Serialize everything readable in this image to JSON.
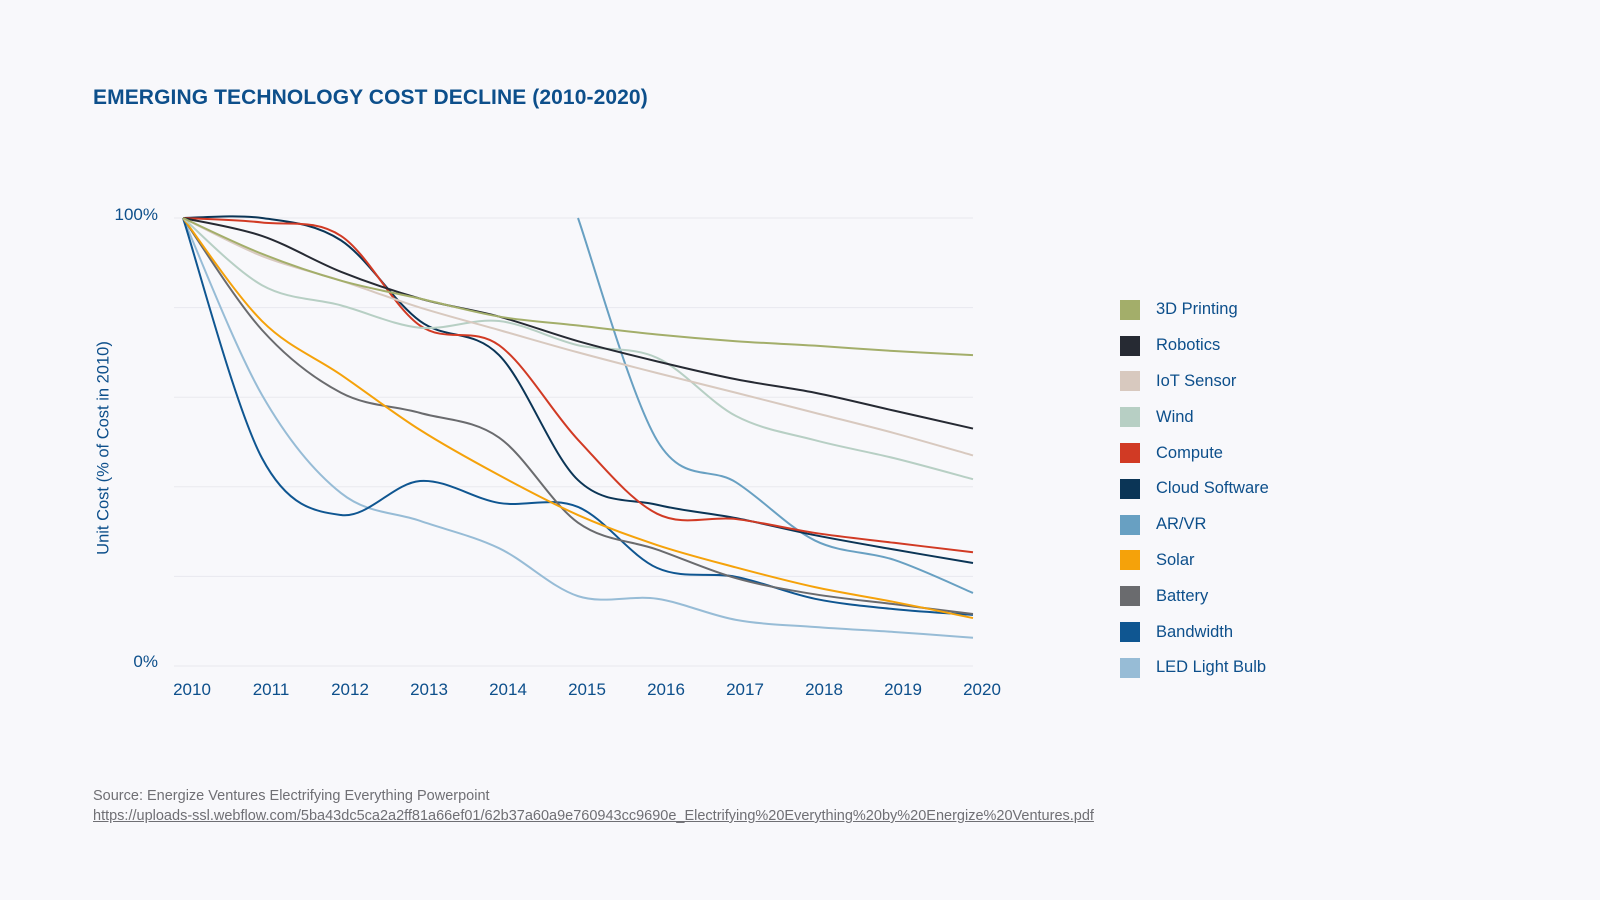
{
  "chart_data": {
    "type": "line",
    "title": "EMERGING TECHNOLOGY COST DECLINE (2010-2020)",
    "xlabel": "",
    "ylabel": "Unit Cost (% of Cost in 2010)",
    "x": [
      2010,
      2011,
      2012,
      2013,
      2014,
      2015,
      2016,
      2017,
      2018,
      2019,
      2020
    ],
    "x_tick_labels": [
      "2010",
      "2011",
      "2012",
      "2013",
      "2014",
      "2015",
      "2016",
      "2017",
      "2018",
      "2019",
      "2020"
    ],
    "y_tick_labels": [
      "100%",
      "0%"
    ],
    "ylim": [
      0,
      100
    ],
    "y_gridlines": [
      0,
      20,
      40,
      60,
      80,
      100
    ],
    "grid": true,
    "legend_position": "right",
    "series": [
      {
        "name": "3D Printing",
        "color": "#a3ae6a",
        "values": [
          100,
          92,
          86,
          82,
          78,
          76,
          74,
          72.5,
          71.5,
          70.3,
          69.4
        ]
      },
      {
        "name": "Robotics",
        "color": "#262a33",
        "values": [
          100,
          96,
          88,
          82,
          78,
          72.5,
          68,
          64,
          61,
          57,
          53
        ]
      },
      {
        "name": "IoT Sensor",
        "color": "#d8c9bf",
        "values": [
          100,
          91.5,
          86,
          80,
          75,
          70,
          65.4,
          61,
          56.5,
          52,
          47
        ]
      },
      {
        "name": "Wind",
        "color": "#b7cfc4",
        "values": [
          100,
          85,
          80.5,
          75.5,
          77,
          71.6,
          68.8,
          55.8,
          50.4,
          46.4,
          41.7
        ]
      },
      {
        "name": "Compute",
        "color": "#d13a24",
        "values": [
          100,
          99,
          96,
          76,
          71.6,
          50.5,
          34,
          32.8,
          29.7,
          27.5,
          25.4
        ]
      },
      {
        "name": "Cloud Software",
        "color": "#0b3556",
        "values": [
          100,
          100,
          95,
          77,
          69.4,
          41.5,
          36,
          33,
          29.2,
          26,
          23
        ]
      },
      {
        "name": "AR/VR",
        "color": "#68a0c2",
        "values": [
          null,
          null,
          null,
          null,
          null,
          100,
          50.4,
          41,
          28,
          23.7,
          16.3
        ]
      },
      {
        "name": "Solar",
        "color": "#f5a20a",
        "values": [
          100,
          77,
          65,
          52.7,
          42.6,
          33.7,
          27,
          22,
          17.6,
          14.3,
          10.7
        ]
      },
      {
        "name": "Battery",
        "color": "#6a6b6e",
        "values": [
          100,
          75,
          61,
          56.5,
          51,
          32,
          26,
          19.6,
          16,
          13.8,
          11.6
        ]
      },
      {
        "name": "Bandwidth",
        "color": "#0f5691",
        "values": [
          100,
          46.4,
          33.7,
          41.3,
          36.4,
          35.5,
          21.9,
          19.9,
          15,
          12.7,
          11.4
        ]
      },
      {
        "name": "LED Light Bulb",
        "color": "#97bcd6",
        "values": [
          100,
          60.5,
          38.6,
          32.4,
          26.3,
          15.6,
          15,
          10.3,
          8.7,
          7.6,
          6.3
        ]
      }
    ]
  },
  "source": {
    "text": "Source: Energize Ventures Electrifying Everything Powerpoint",
    "link": "https://uploads-ssl.webflow.com/5ba43dc5ca2a2ff81a66ef01/62b37a60a9e760943cc9690e_Electrifying%20Everything%20by%20Energize%20Ventures.pdf"
  },
  "colors": {
    "title": "#0d4f8b",
    "background": "#f8f8fb",
    "gridline": "#e9e9ee"
  }
}
